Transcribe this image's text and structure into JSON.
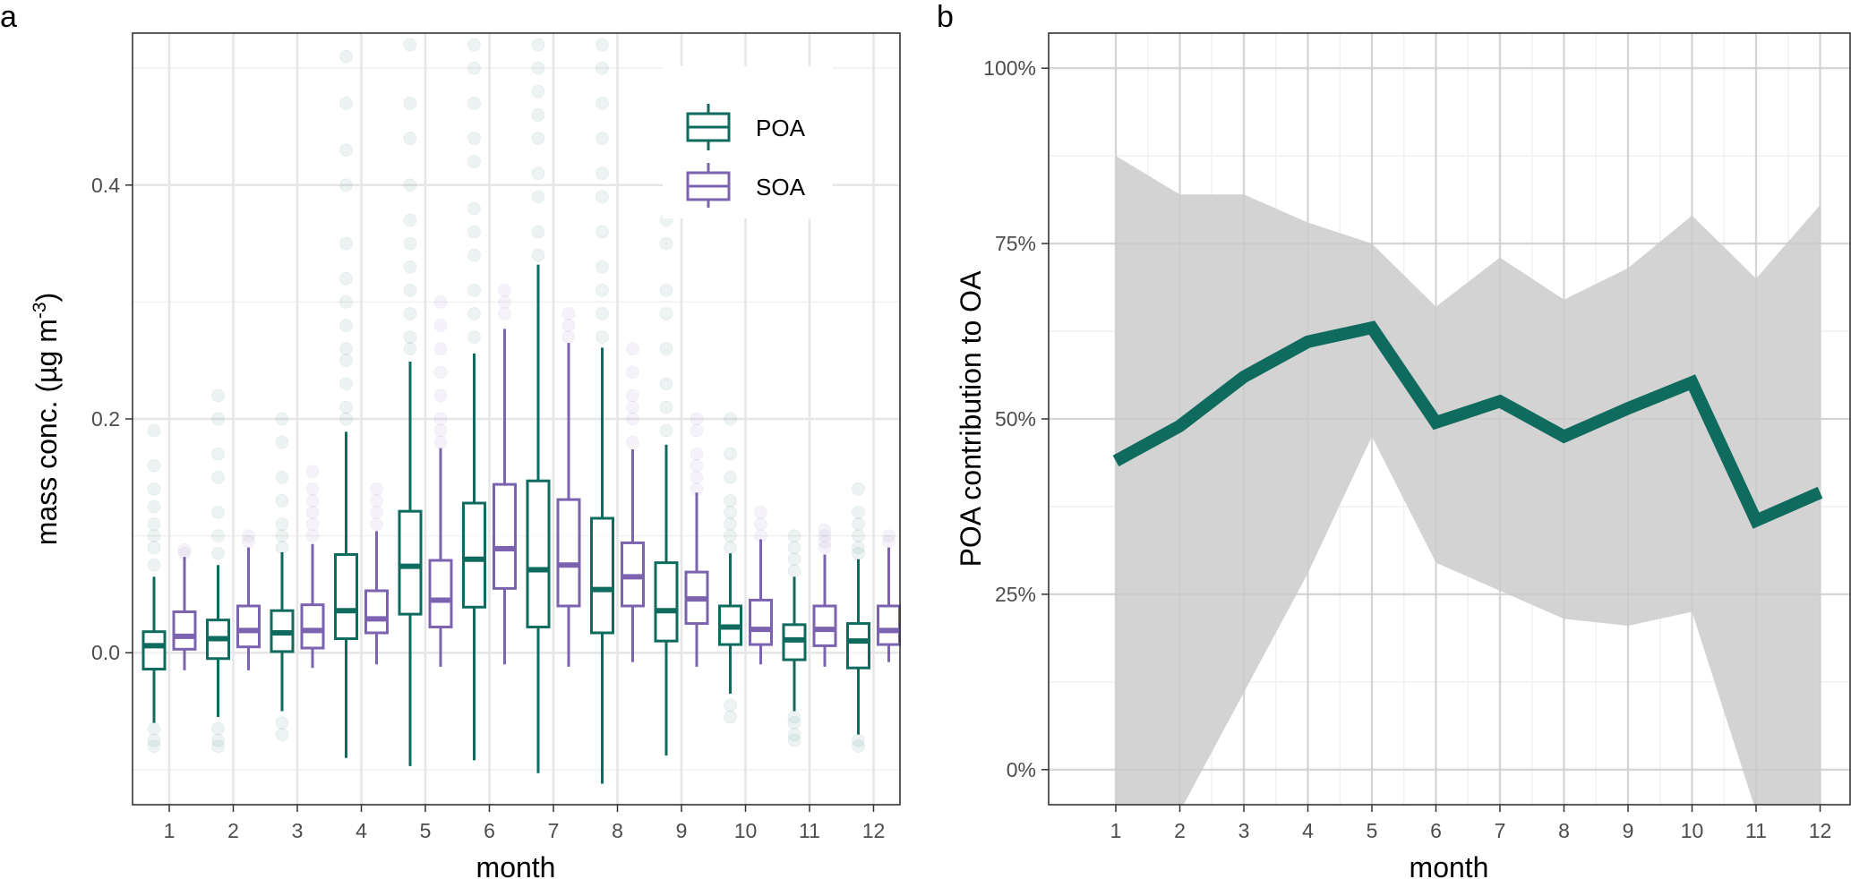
{
  "colors": {
    "poa": "#0f6b5e",
    "soa": "#7b63b0",
    "ribbon": "#d3d3d3",
    "grid_major": "#e6e6e6",
    "grid_minor": "#f1f1f1",
    "panel_border": "#333333"
  },
  "chart_data": [
    {
      "panel": "a",
      "type": "box",
      "xlabel": "month",
      "ylabel": "mass conc. (µg m",
      "ylabel_sup": "-3",
      "ylabel_end": ")",
      "ylim": [
        -0.13,
        0.53
      ],
      "yticks": [
        0.0,
        0.2,
        0.4
      ],
      "ytick_labels": [
        "0.0",
        "0.2",
        "0.4"
      ],
      "categories": [
        "1",
        "2",
        "3",
        "4",
        "5",
        "6",
        "7",
        "8",
        "9",
        "10",
        "11",
        "12"
      ],
      "legend": {
        "position": "top-right",
        "entries": [
          "POA",
          "SOA"
        ]
      },
      "series": [
        {
          "name": "POA",
          "boxes": [
            {
              "min": -0.06,
              "q1": -0.014,
              "median": 0.006,
              "q3": 0.018,
              "max": 0.065
            },
            {
              "min": -0.055,
              "q1": -0.005,
              "median": 0.012,
              "q3": 0.028,
              "max": 0.075
            },
            {
              "min": -0.05,
              "q1": 0.001,
              "median": 0.017,
              "q3": 0.036,
              "max": 0.086
            },
            {
              "min": -0.09,
              "q1": 0.012,
              "median": 0.036,
              "q3": 0.084,
              "max": 0.189
            },
            {
              "min": -0.097,
              "q1": 0.033,
              "median": 0.074,
              "q3": 0.121,
              "max": 0.249
            },
            {
              "min": -0.092,
              "q1": 0.039,
              "median": 0.08,
              "q3": 0.128,
              "max": 0.256
            },
            {
              "min": -0.103,
              "q1": 0.022,
              "median": 0.071,
              "q3": 0.147,
              "max": 0.332
            },
            {
              "min": -0.112,
              "q1": 0.017,
              "median": 0.054,
              "q3": 0.115,
              "max": 0.261
            },
            {
              "min": -0.088,
              "q1": 0.01,
              "median": 0.036,
              "q3": 0.077,
              "max": 0.178
            },
            {
              "min": -0.035,
              "q1": 0.007,
              "median": 0.022,
              "q3": 0.04,
              "max": 0.085
            },
            {
              "min": -0.05,
              "q1": -0.006,
              "median": 0.011,
              "q3": 0.024,
              "max": 0.065
            },
            {
              "min": -0.07,
              "q1": -0.013,
              "median": 0.01,
              "q3": 0.025,
              "max": 0.08
            }
          ]
        },
        {
          "name": "SOA",
          "boxes": [
            {
              "min": -0.015,
              "q1": 0.003,
              "median": 0.014,
              "q3": 0.035,
              "max": 0.082
            },
            {
              "min": -0.015,
              "q1": 0.005,
              "median": 0.019,
              "q3": 0.04,
              "max": 0.09
            },
            {
              "min": -0.013,
              "q1": 0.004,
              "median": 0.019,
              "q3": 0.041,
              "max": 0.093
            },
            {
              "min": -0.01,
              "q1": 0.017,
              "median": 0.029,
              "q3": 0.053,
              "max": 0.104
            },
            {
              "min": -0.012,
              "q1": 0.022,
              "median": 0.045,
              "q3": 0.079,
              "max": 0.175
            },
            {
              "min": -0.01,
              "q1": 0.055,
              "median": 0.089,
              "q3": 0.144,
              "max": 0.277
            },
            {
              "min": -0.012,
              "q1": 0.04,
              "median": 0.075,
              "q3": 0.131,
              "max": 0.265
            },
            {
              "min": -0.008,
              "q1": 0.04,
              "median": 0.065,
              "q3": 0.094,
              "max": 0.174
            },
            {
              "min": -0.012,
              "q1": 0.025,
              "median": 0.046,
              "q3": 0.069,
              "max": 0.137
            },
            {
              "min": -0.01,
              "q1": 0.007,
              "median": 0.02,
              "q3": 0.045,
              "max": 0.097
            },
            {
              "min": -0.012,
              "q1": 0.006,
              "median": 0.02,
              "q3": 0.04,
              "max": 0.084
            },
            {
              "min": -0.008,
              "q1": 0.007,
              "median": 0.019,
              "q3": 0.04,
              "max": 0.09
            }
          ]
        }
      ],
      "outliers": {
        "POA": [
          [
            0.075,
            0.09,
            0.1,
            0.11,
            0.125,
            0.14,
            0.16,
            0.19,
            -0.065,
            -0.075,
            -0.08
          ],
          [
            0.085,
            0.1,
            0.12,
            0.15,
            0.17,
            0.2,
            0.22,
            -0.065,
            -0.075,
            -0.08
          ],
          [
            0.09,
            0.1,
            0.11,
            0.13,
            0.15,
            0.18,
            0.2,
            -0.06,
            -0.07
          ],
          [
            0.2,
            0.21,
            0.23,
            0.25,
            0.26,
            0.28,
            0.3,
            0.32,
            0.35,
            0.4,
            0.43,
            0.47,
            0.51
          ],
          [
            0.26,
            0.27,
            0.29,
            0.31,
            0.33,
            0.35,
            0.37,
            0.4,
            0.44,
            0.47,
            0.52
          ],
          [
            0.27,
            0.29,
            0.31,
            0.34,
            0.36,
            0.38,
            0.42,
            0.44,
            0.47,
            0.5,
            0.52
          ],
          [
            0.34,
            0.36,
            0.39,
            0.41,
            0.44,
            0.46,
            0.48,
            0.5,
            0.52
          ],
          [
            0.27,
            0.29,
            0.31,
            0.33,
            0.36,
            0.39,
            0.41,
            0.44,
            0.47,
            0.5,
            0.52
          ],
          [
            0.19,
            0.21,
            0.23,
            0.26,
            0.29,
            0.31,
            0.35,
            0.37
          ],
          [
            0.09,
            0.1,
            0.11,
            0.12,
            0.13,
            0.15,
            0.17,
            0.2,
            -0.045,
            -0.055
          ],
          [
            0.07,
            0.08,
            0.09,
            0.1,
            -0.055,
            -0.06,
            -0.07,
            -0.075
          ],
          [
            0.085,
            0.09,
            0.1,
            0.11,
            0.12,
            0.14,
            -0.075,
            -0.08
          ]
        ],
        "SOA": [
          [
            0.085,
            0.088
          ],
          [
            0.095,
            0.1
          ],
          [
            0.1,
            0.11,
            0.12,
            0.13,
            0.14,
            0.155
          ],
          [
            0.11,
            0.12,
            0.13,
            0.14
          ],
          [
            0.18,
            0.19,
            0.2,
            0.22,
            0.24,
            0.26,
            0.28,
            0.3
          ],
          [
            0.29,
            0.3,
            0.31
          ],
          [
            0.27,
            0.28,
            0.29
          ],
          [
            0.18,
            0.2,
            0.21,
            0.22,
            0.24,
            0.26
          ],
          [
            0.14,
            0.15,
            0.16,
            0.17,
            0.19,
            0.2
          ],
          [
            0.1,
            0.11,
            0.12
          ],
          [
            0.09,
            0.095,
            0.1,
            0.105
          ],
          [
            0.095,
            0.1
          ]
        ]
      }
    },
    {
      "panel": "b",
      "type": "line",
      "xlabel": "month",
      "ylabel": "POA contribution to OA",
      "ylim": [
        -0.05,
        1.05
      ],
      "yticks": [
        0,
        0.25,
        0.5,
        0.75,
        1.0
      ],
      "ytick_labels": [
        "0%",
        "25%",
        "50%",
        "75%",
        "100%"
      ],
      "x": [
        1,
        2,
        3,
        4,
        5,
        6,
        7,
        8,
        9,
        10,
        11,
        12
      ],
      "xtick_labels": [
        "1",
        "2",
        "3",
        "4",
        "5",
        "6",
        "7",
        "8",
        "9",
        "10",
        "11",
        "12"
      ],
      "series": [
        {
          "values": [
            0.44,
            0.49,
            0.56,
            0.61,
            0.63,
            0.495,
            0.525,
            0.475,
            0.515,
            0.552,
            0.355,
            0.395
          ],
          "lower": [
            -0.06,
            -0.06,
            0.11,
            0.28,
            0.475,
            0.295,
            0.255,
            0.215,
            0.205,
            0.225,
            -0.06,
            -0.06
          ],
          "upper": [
            0.875,
            0.82,
            0.82,
            0.78,
            0.75,
            0.66,
            0.73,
            0.67,
            0.715,
            0.79,
            0.7,
            0.805
          ]
        }
      ]
    }
  ],
  "panel_labels": {
    "a": "a",
    "b": "b"
  }
}
